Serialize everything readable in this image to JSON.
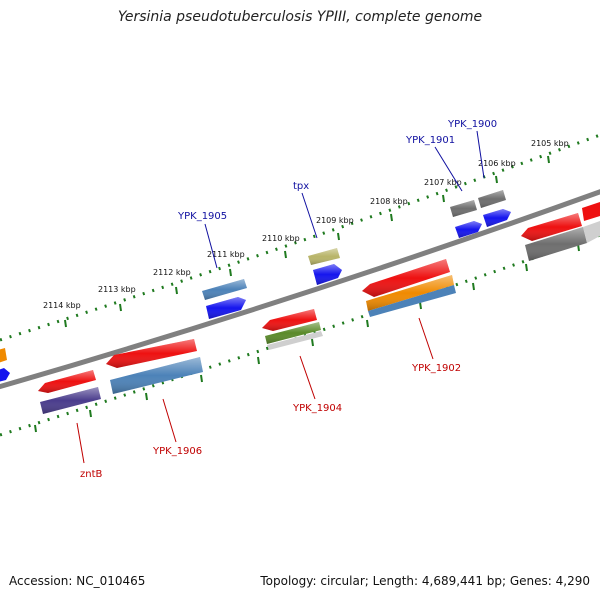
{
  "title": "Yersinia pseudotuberculosis YPIII, complete genome",
  "footer": {
    "accession": "Accession: NC_010465",
    "topology": "Topology: circular; Length: 4,689,441 bp; Genes: 4,290"
  },
  "colors": {
    "backbone": "#808080",
    "tick": "#1f7a1f",
    "gene_label_forward": "#1010a0",
    "gene_label_reverse": "#c00000",
    "red": "#ee1111",
    "blue": "#1515ee",
    "steel": "#4c82b8",
    "gray": "#6e6e6e",
    "olive": "#b8b468",
    "orange": "#f08a00",
    "purple": "#4a3c8c",
    "green": "#5a8a2a",
    "light_gray": "#cfcfcf"
  },
  "scale_labels": [
    "2114 kbp",
    "2113 kbp",
    "2112 kbp",
    "2111 kbp",
    "2110 kbp",
    "2109 kbp",
    "2108 kbp",
    "2107 kbp",
    "2106 kbp",
    "2105 kbp"
  ],
  "gene_labels": {
    "forward": [
      "YPK_1905",
      "tpx",
      "YPK_1901",
      "YPK_1900"
    ],
    "reverse": [
      "zntB",
      "YPK_1906",
      "YPK_1904",
      "YPK_1902"
    ]
  }
}
